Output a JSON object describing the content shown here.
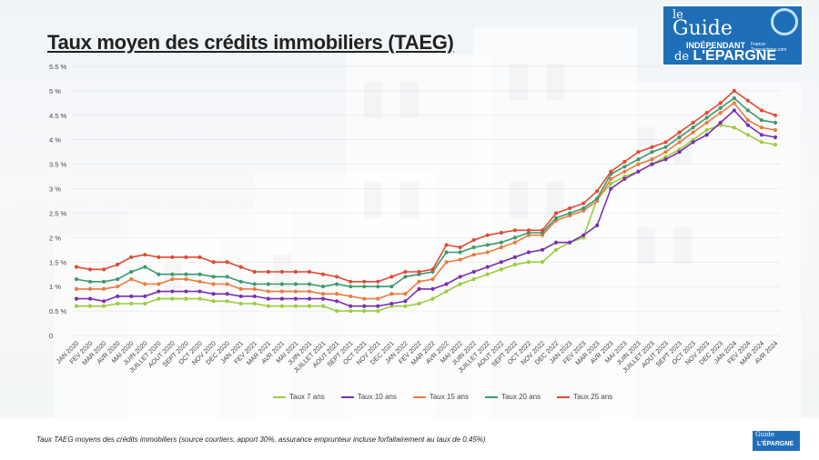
{
  "title": "Taux moyen des crédits immobiliers (TAEG)",
  "logo": {
    "line1": "le",
    "line2": "Guide",
    "line3": "INDÉPENDANT",
    "line4": "L'ÉPARGNE",
    "prefix": "de",
    "site": "France-Transactions.com"
  },
  "footer_note": "Taux TAEG moyens des crédits immobiliers (source courtiers, apport 30%, assurance emprunteur incluse forfaitairement au taux de 0.45%)",
  "chart_data": {
    "type": "line",
    "ylim": [
      0,
      5.5
    ],
    "ytick_values": [
      0,
      0.5,
      1,
      1.5,
      2,
      2.5,
      3,
      3.5,
      4,
      4.5,
      5,
      5.5
    ],
    "ytick_labels": [
      "0",
      "0.5 %",
      "1 %",
      "1.5 %",
      "2 %",
      "2.5 %",
      "3 %",
      "3.5 %",
      "4 %",
      "4.5 %",
      "5 %",
      "5.5 %"
    ],
    "categories": [
      "JAN 2020",
      "FEV 2020",
      "MAR 2020",
      "AVR 2020",
      "MAI 2020",
      "JUIN 2020",
      "JUILLET 2020",
      "AOUT 2020",
      "SEPT 2020",
      "OCT 2020",
      "NOV 2020",
      "DEC 2020",
      "JAN 2021",
      "FEV 2021",
      "MAR 2021",
      "AVR 2021",
      "MAI 2021",
      "JUIN 2021",
      "JUILLET 2021",
      "AOUT 2021",
      "SEPT 2021",
      "OCT 2021",
      "NOV 2021",
      "DEC 2021",
      "JAN 2022",
      "FEV 2022",
      "MAR 2022",
      "AVR 2022",
      "MAI 2022",
      "JUIN 2022",
      "JUILLET 2022",
      "AOUT 2022",
      "SEPT 2022",
      "OCT 2022",
      "NOV 2022",
      "DEC 2022",
      "JAN 2023",
      "FEV 2023",
      "MAR 2023",
      "AVR 2023",
      "MAI 2023",
      "JUIN 2023",
      "JUILLET 2023",
      "AOUT 2023",
      "SEPT 2023",
      "OCT 2023",
      "NOV 2023",
      "DEC 2023",
      "JAN 2024",
      "FEV 2024",
      "MAR 2024",
      "AVR 2024"
    ],
    "series": [
      {
        "name": "Taux 7 ans",
        "color": "#9acd3c",
        "values": [
          0.6,
          0.6,
          0.6,
          0.65,
          0.65,
          0.65,
          0.75,
          0.75,
          0.75,
          0.75,
          0.7,
          0.7,
          0.65,
          0.65,
          0.6,
          0.6,
          0.6,
          0.6,
          0.6,
          0.5,
          0.5,
          0.5,
          0.5,
          0.6,
          0.6,
          0.65,
          0.75,
          0.9,
          1.05,
          1.15,
          1.25,
          1.35,
          1.45,
          1.5,
          1.5,
          1.75,
          1.9,
          2.0,
          2.8,
          3.1,
          3.25,
          3.35,
          3.5,
          3.65,
          3.8,
          4.0,
          4.2,
          4.3,
          4.25,
          4.1,
          3.95,
          3.9
        ]
      },
      {
        "name": "Taux 10 ans",
        "color": "#7a2fb0",
        "values": [
          0.75,
          0.75,
          0.7,
          0.8,
          0.8,
          0.8,
          0.9,
          0.9,
          0.9,
          0.9,
          0.85,
          0.85,
          0.8,
          0.8,
          0.75,
          0.75,
          0.75,
          0.75,
          0.75,
          0.7,
          0.6,
          0.6,
          0.6,
          0.65,
          0.7,
          0.95,
          0.95,
          1.05,
          1.2,
          1.3,
          1.4,
          1.5,
          1.6,
          1.7,
          1.75,
          1.9,
          1.9,
          2.05,
          2.25,
          3.0,
          3.2,
          3.35,
          3.5,
          3.6,
          3.75,
          3.95,
          4.1,
          4.35,
          4.6,
          4.3,
          4.1,
          4.05
        ]
      },
      {
        "name": "Taux 15 ans",
        "color": "#ec7a3c",
        "values": [
          0.95,
          0.95,
          0.95,
          1.0,
          1.15,
          1.05,
          1.05,
          1.15,
          1.15,
          1.1,
          1.05,
          1.05,
          0.95,
          0.95,
          0.9,
          0.9,
          0.9,
          0.9,
          0.85,
          0.85,
          0.8,
          0.75,
          0.75,
          0.85,
          0.85,
          1.1,
          1.15,
          1.5,
          1.55,
          1.65,
          1.7,
          1.8,
          1.9,
          2.05,
          2.05,
          2.35,
          2.45,
          2.55,
          2.75,
          3.2,
          3.35,
          3.5,
          3.6,
          3.75,
          3.95,
          4.15,
          4.35,
          4.55,
          4.75,
          4.4,
          4.25,
          4.2
        ]
      },
      {
        "name": "Taux 20 ans",
        "color": "#3a9a6a",
        "values": [
          1.15,
          1.1,
          1.1,
          1.15,
          1.3,
          1.4,
          1.25,
          1.25,
          1.25,
          1.25,
          1.2,
          1.2,
          1.1,
          1.05,
          1.05,
          1.05,
          1.05,
          1.05,
          1.0,
          1.05,
          1.0,
          1.0,
          1.0,
          1.0,
          1.2,
          1.25,
          1.3,
          1.7,
          1.7,
          1.8,
          1.85,
          1.9,
          2.0,
          2.1,
          2.1,
          2.4,
          2.5,
          2.6,
          2.8,
          3.3,
          3.45,
          3.6,
          3.75,
          3.85,
          4.05,
          4.25,
          4.45,
          4.65,
          4.85,
          4.6,
          4.4,
          4.35
        ]
      },
      {
        "name": "Taux 25 ans",
        "color": "#e04a30",
        "values": [
          1.4,
          1.35,
          1.35,
          1.45,
          1.6,
          1.65,
          1.6,
          1.6,
          1.6,
          1.6,
          1.5,
          1.5,
          1.4,
          1.3,
          1.3,
          1.3,
          1.3,
          1.3,
          1.25,
          1.2,
          1.1,
          1.1,
          1.1,
          1.2,
          1.3,
          1.3,
          1.35,
          1.85,
          1.8,
          1.95,
          2.05,
          2.1,
          2.15,
          2.15,
          2.15,
          2.5,
          2.6,
          2.7,
          2.95,
          3.35,
          3.55,
          3.75,
          3.85,
          3.95,
          4.15,
          4.35,
          4.55,
          4.75,
          5.0,
          4.8,
          4.6,
          4.5
        ]
      }
    ]
  }
}
